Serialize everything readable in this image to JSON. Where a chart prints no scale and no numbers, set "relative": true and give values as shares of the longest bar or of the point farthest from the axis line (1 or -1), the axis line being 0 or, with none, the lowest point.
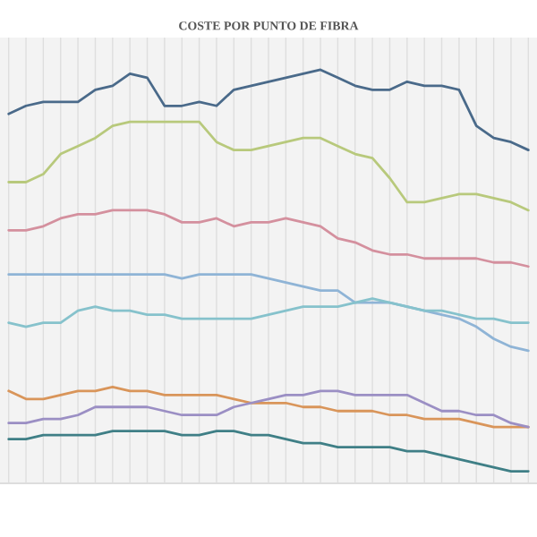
{
  "chart_data": {
    "type": "line",
    "title": "COSTE POR PUNTO DE FIBRA",
    "relative": true,
    "grid": "x",
    "legend": false,
    "categories": [
      null,
      null,
      null,
      null,
      null,
      null,
      null,
      null,
      null,
      null,
      null,
      null,
      null,
      null,
      null,
      null,
      null,
      null,
      null,
      null,
      null,
      null,
      null,
      null,
      null,
      null,
      null,
      null,
      null,
      null,
      null
    ],
    "series": [
      {
        "color": "#4a6a8a",
        "values": [
          0.89,
          0.91,
          0.92,
          0.92,
          0.92,
          0.95,
          0.96,
          0.99,
          0.98,
          0.91,
          0.91,
          0.92,
          0.91,
          0.95,
          0.96,
          0.97,
          0.98,
          0.99,
          1,
          0.98,
          0.96,
          0.95,
          0.95,
          0.97,
          0.96,
          0.96,
          0.95,
          0.86,
          0.83,
          0.82,
          0.8
        ]
      },
      {
        "color": "#b8c97c",
        "values": [
          0.72,
          0.72,
          0.74,
          0.79,
          0.81,
          0.83,
          0.86,
          0.87,
          0.87,
          0.87,
          0.87,
          0.87,
          0.82,
          0.8,
          0.8,
          0.81,
          0.82,
          0.83,
          0.83,
          0.81,
          0.79,
          0.78,
          0.73,
          0.67,
          0.67,
          0.68,
          0.69,
          0.69,
          0.68,
          0.67,
          0.65
        ]
      },
      {
        "color": "#d4909e",
        "values": [
          0.6,
          0.6,
          0.61,
          0.63,
          0.64,
          0.64,
          0.65,
          0.65,
          0.65,
          0.64,
          0.62,
          0.62,
          0.63,
          0.61,
          0.62,
          0.62,
          0.63,
          0.62,
          0.61,
          0.58,
          0.57,
          0.55,
          0.54,
          0.54,
          0.53,
          0.53,
          0.53,
          0.53,
          0.52,
          0.52,
          0.51
        ]
      },
      {
        "color": "#8fb4d6",
        "values": [
          0.49,
          0.49,
          0.49,
          0.49,
          0.49,
          0.49,
          0.49,
          0.49,
          0.49,
          0.49,
          0.48,
          0.49,
          0.49,
          0.49,
          0.49,
          0.48,
          0.47,
          0.46,
          0.45,
          0.45,
          0.42,
          0.42,
          0.42,
          0.41,
          0.4,
          0.39,
          0.38,
          0.36,
          0.33,
          0.31,
          0.3
        ]
      },
      {
        "color": "#86c2cc",
        "values": [
          0.37,
          0.36,
          0.37,
          0.37,
          0.4,
          0.41,
          0.4,
          0.4,
          0.39,
          0.39,
          0.38,
          0.38,
          0.38,
          0.38,
          0.38,
          0.39,
          0.4,
          0.41,
          0.41,
          0.41,
          0.42,
          0.43,
          0.42,
          0.41,
          0.4,
          0.4,
          0.39,
          0.38,
          0.38,
          0.37,
          0.37
        ]
      },
      {
        "color": "#d9955a",
        "values": [
          0.2,
          0.18,
          0.18,
          0.19,
          0.2,
          0.2,
          0.21,
          0.2,
          0.2,
          0.19,
          0.19,
          0.19,
          0.19,
          0.18,
          0.17,
          0.17,
          0.17,
          0.16,
          0.16,
          0.15,
          0.15,
          0.15,
          0.14,
          0.14,
          0.13,
          0.13,
          0.13,
          0.12,
          0.11,
          0.11,
          0.11
        ]
      },
      {
        "color": "#9b8fc4",
        "values": [
          0.12,
          0.12,
          0.13,
          0.13,
          0.14,
          0.16,
          0.16,
          0.16,
          0.16,
          0.15,
          0.14,
          0.14,
          0.14,
          0.16,
          0.17,
          0.18,
          0.19,
          0.19,
          0.2,
          0.2,
          0.19,
          0.19,
          0.19,
          0.19,
          0.17,
          0.15,
          0.15,
          0.14,
          0.14,
          0.12,
          0.11
        ]
      },
      {
        "color": "#3f7f86",
        "values": [
          0.08,
          0.08,
          0.09,
          0.09,
          0.09,
          0.09,
          0.1,
          0.1,
          0.1,
          0.1,
          0.09,
          0.09,
          0.1,
          0.1,
          0.09,
          0.09,
          0.08,
          0.07,
          0.07,
          0.06,
          0.06,
          0.06,
          0.06,
          0.05,
          0.05,
          0.04,
          0.03,
          0.02,
          0.01,
          0,
          0
        ]
      }
    ]
  }
}
